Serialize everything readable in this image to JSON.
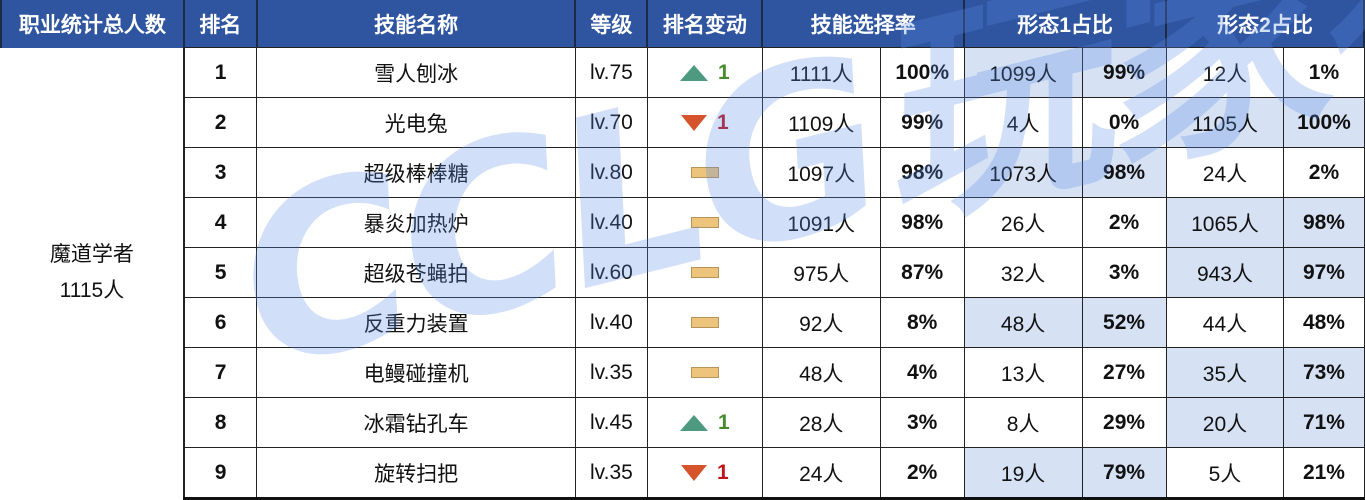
{
  "table": {
    "headers": [
      "职业统计总人数",
      "排名",
      "技能名称",
      "等级",
      "排名变动",
      "技能选择率",
      "形态1占比",
      "形态2占比"
    ],
    "group": {
      "name": "魔道学者",
      "count": "1115人"
    },
    "rows": [
      {
        "rank": "1",
        "skill": "雪人刨冰",
        "level": "lv.75",
        "change_dir": "up",
        "change": "1",
        "pick_count": "1111人",
        "pick_rate": "100%",
        "form1_count": "1099人",
        "form1_pct": "99%",
        "form2_count": "12人",
        "form2_pct": "1%",
        "highlight": "form1"
      },
      {
        "rank": "2",
        "skill": "光电兔",
        "level": "lv.70",
        "change_dir": "down",
        "change": "1",
        "pick_count": "1109人",
        "pick_rate": "99%",
        "form1_count": "4人",
        "form1_pct": "0%",
        "form2_count": "1105人",
        "form2_pct": "100%",
        "highlight": "form2"
      },
      {
        "rank": "3",
        "skill": "超级棒棒糖",
        "level": "lv.80",
        "change_dir": "flat",
        "change": "",
        "pick_count": "1097人",
        "pick_rate": "98%",
        "form1_count": "1073人",
        "form1_pct": "98%",
        "form2_count": "24人",
        "form2_pct": "2%",
        "highlight": "form1"
      },
      {
        "rank": "4",
        "skill": "暴炎加热炉",
        "level": "lv.40",
        "change_dir": "flat",
        "change": "",
        "pick_count": "1091人",
        "pick_rate": "98%",
        "form1_count": "26人",
        "form1_pct": "2%",
        "form2_count": "1065人",
        "form2_pct": "98%",
        "highlight": "form2"
      },
      {
        "rank": "5",
        "skill": "超级苍蝇拍",
        "level": "lv.60",
        "change_dir": "flat",
        "change": "",
        "pick_count": "975人",
        "pick_rate": "87%",
        "form1_count": "32人",
        "form1_pct": "3%",
        "form2_count": "943人",
        "form2_pct": "97%",
        "highlight": "form2"
      },
      {
        "rank": "6",
        "skill": "反重力装置",
        "level": "lv.40",
        "change_dir": "flat",
        "change": "",
        "pick_count": "92人",
        "pick_rate": "8%",
        "form1_count": "48人",
        "form1_pct": "52%",
        "form2_count": "44人",
        "form2_pct": "48%",
        "highlight": "form1"
      },
      {
        "rank": "7",
        "skill": "电鳗碰撞机",
        "level": "lv.35",
        "change_dir": "flat",
        "change": "",
        "pick_count": "48人",
        "pick_rate": "4%",
        "form1_count": "13人",
        "form1_pct": "27%",
        "form2_count": "35人",
        "form2_pct": "73%",
        "highlight": "form2"
      },
      {
        "rank": "8",
        "skill": "冰霜钻孔车",
        "level": "lv.45",
        "change_dir": "up",
        "change": "1",
        "pick_count": "28人",
        "pick_rate": "3%",
        "form1_count": "8人",
        "form1_pct": "29%",
        "form2_count": "20人",
        "form2_pct": "71%",
        "highlight": "form2"
      },
      {
        "rank": "9",
        "skill": "旋转扫把",
        "level": "lv.35",
        "change_dir": "down",
        "change": "1",
        "pick_count": "24人",
        "pick_rate": "2%",
        "form1_count": "19人",
        "form1_pct": "79%",
        "form2_count": "5人",
        "form2_pct": "21%",
        "highlight": "form1"
      }
    ]
  },
  "watermark": "CCLG玩家社区",
  "colors": {
    "header_bg": "#2f55a0",
    "highlight": "#d6e1f4",
    "up": "#4e9a80",
    "down": "#d6542c",
    "flat": "#edc47c"
  }
}
